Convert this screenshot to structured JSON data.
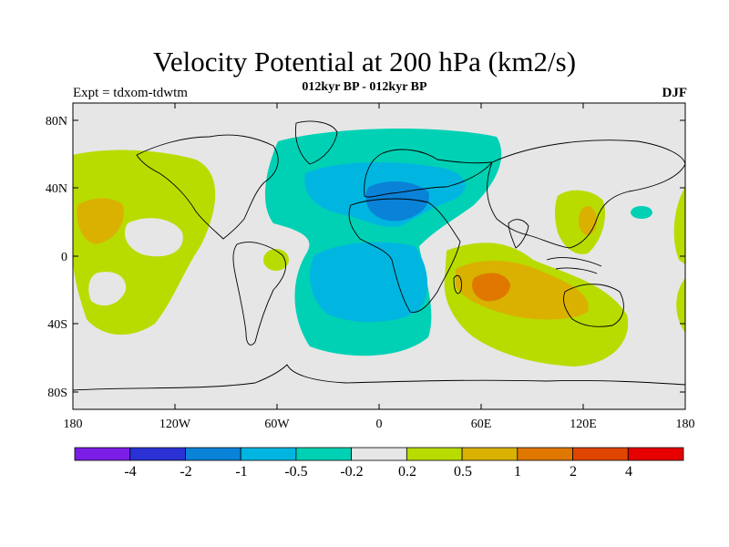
{
  "header": {
    "title": "Velocity Potential at 200 hPa (km2/s)",
    "subtitle": "012kyr BP - 012kyr BP",
    "left_string": "Expt = tdxom-tdwtm",
    "right_string": "DJF"
  },
  "map": {
    "projection": "cylindrical equidistant",
    "background_color": "#e6e6e6",
    "lat_ticks": [
      "80N",
      "40N",
      "0",
      "40S",
      "80S"
    ],
    "lon_ticks": [
      "180",
      "120W",
      "60W",
      "0",
      "60E",
      "120E",
      "180"
    ],
    "features": [
      {
        "name": "north-atlantic-europe-negative",
        "level": "-0.5 to -0.2",
        "color": "#00d1b4"
      },
      {
        "name": "mediterranean-negative",
        "level": "-1 to -0.5",
        "color": "#00b6e0"
      },
      {
        "name": "africa-atlantic-negative",
        "level": "-1 to -0.5",
        "color": "#00b6e0"
      },
      {
        "name": "indian-ocean-positive",
        "level": "0.5 to 1",
        "color": "#dab100"
      },
      {
        "name": "madagascar-positive",
        "level": "1 to 2",
        "color": "#e07800"
      },
      {
        "name": "north-pacific-positive",
        "level": "0.2 to 0.5",
        "color": "#b8dc00"
      }
    ]
  },
  "colorbar": {
    "colors": [
      "#7a1ee6",
      "#2a32d6",
      "#0a82d8",
      "#00b6e0",
      "#00d1b4",
      "#e6e6e6",
      "#b8dc00",
      "#dab100",
      "#e07800",
      "#e04600",
      "#e60000"
    ],
    "labels": [
      "-4",
      "-2",
      "-1",
      "-0.5",
      "-0.2",
      "0.2",
      "0.5",
      "1",
      "2",
      "4"
    ]
  }
}
